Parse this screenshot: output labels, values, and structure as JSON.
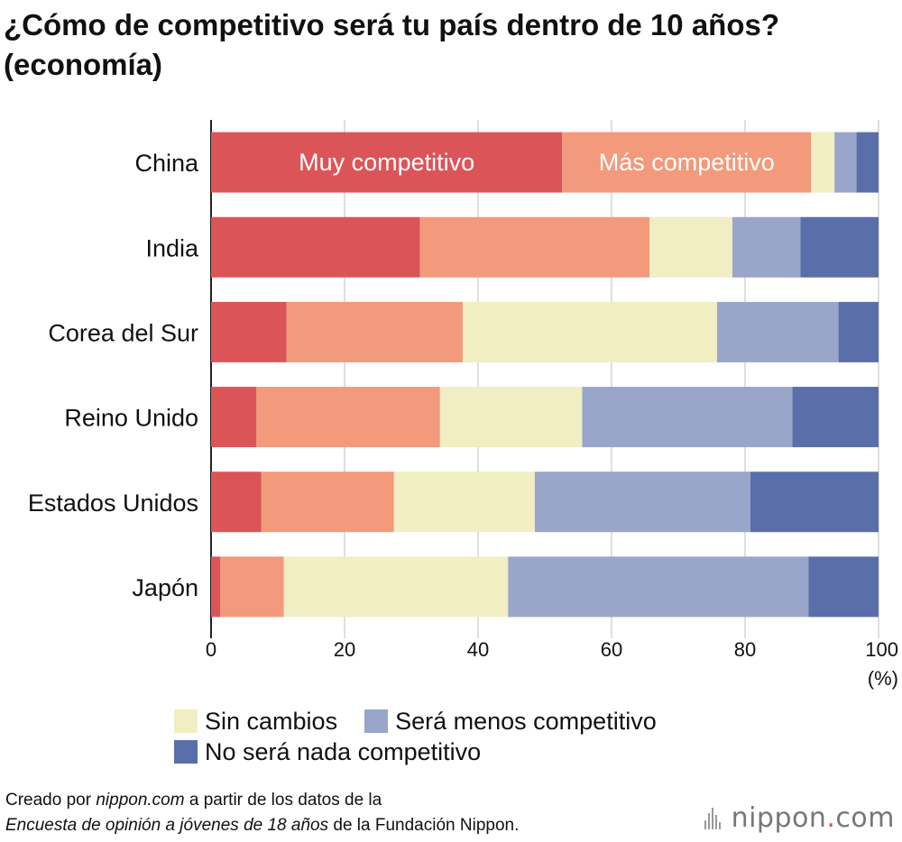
{
  "title": "¿Cómo de competitivo será tu país dentro de 10 años? (economía)",
  "chart_data": {
    "type": "bar",
    "orientation": "horizontal",
    "stacked": true,
    "categories": [
      "China",
      "India",
      "Corea del Sur",
      "Reino Unido",
      "Estados Unidos",
      "Japón"
    ],
    "series": [
      {
        "name": "Muy competitivo",
        "color": "#db5558",
        "values": [
          52.6,
          31.3,
          11.3,
          6.8,
          7.5,
          1.4
        ]
      },
      {
        "name": "Más competitivo",
        "color": "#f29a7b",
        "values": [
          37.3,
          34.4,
          26.4,
          27.5,
          19.9,
          9.5
        ]
      },
      {
        "name": "Sin cambios",
        "color": "#f1eec4",
        "values": [
          3.5,
          12.4,
          38.1,
          21.3,
          21.1,
          33.6
        ]
      },
      {
        "name": "Será menos competitivo",
        "color": "#99a6c9",
        "values": [
          3.3,
          10.2,
          18.2,
          31.5,
          32.3,
          45.0
        ]
      },
      {
        "name": "No será nada competitivo",
        "color": "#5a6ea9",
        "values": [
          3.3,
          11.7,
          6.0,
          12.9,
          19.2,
          10.5
        ]
      }
    ],
    "inline_labels": [
      "Muy competitivo",
      "Más competitivo"
    ],
    "xlim": [
      0,
      100
    ],
    "xticks": [
      0,
      20,
      40,
      60,
      80,
      100
    ],
    "xunit": "(%)",
    "grid": true
  },
  "legend": {
    "items": [
      {
        "label": "Sin cambios",
        "color": "#f1eec4"
      },
      {
        "label": "Será menos competitivo",
        "color": "#99a6c9"
      },
      {
        "label": "No será nada competitivo",
        "color": "#5a6ea9"
      }
    ]
  },
  "source": {
    "prefix": "Creado por ",
    "site": "nippon.com",
    "middle": " a partir de los datos de la",
    "survey": "Encuesta de opinión a jóvenes de 18 años",
    "suffix": " de la Fundación Nippon."
  },
  "logo": {
    "name": "nippon",
    "dot": ".",
    "tld": "com"
  }
}
